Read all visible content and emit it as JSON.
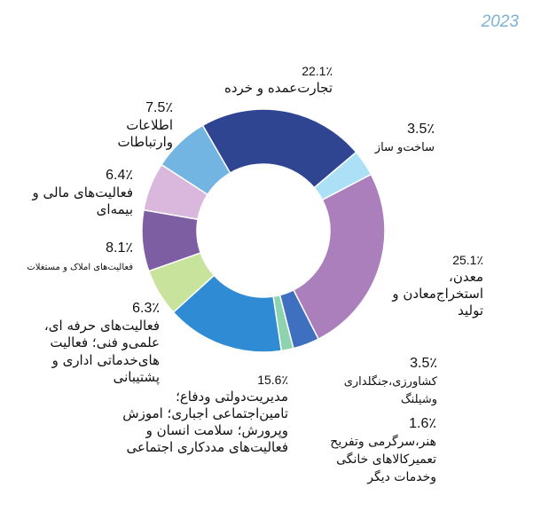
{
  "chart_data": {
    "type": "donut",
    "title": "2023",
    "categories": [
      "تجارت‌عمده و خرده",
      "ساخت‌و ساز",
      "معدن، استخراج‌معادن و تولید",
      "کشاورزی،جنگلداری وشیلنگ",
      "هنر،سرگرمی وتفریح تعمیرکالاهای خانگی وخدمات دیگر",
      "مدیریت‌دولتی ودفاع؛ تامین‌اجتماعی اجباری؛ اموزش وپرورش؛ سلامت انسان و فعالیت‌های مددکاری اجتماعی",
      "فعالیت‌های حرفه ای، علمی‌و فنی؛ فعالیت های‌خدماتی اداری و پشتیبانی",
      "فعالیت‌های املاک و مستغلات",
      "فعالیت‌های مالی و بیمه‌ای",
      "اطلاعات وارتباطات"
    ],
    "values": [
      22.1,
      3.5,
      25.1,
      3.5,
      1.6,
      15.6,
      6.3,
      8.1,
      6.4,
      7.5
    ],
    "value_labels": [
      "22.1٪",
      "3.5٪",
      "25.1٪",
      "3.5٪",
      "1.6٪",
      "15.6٪",
      "6.3٪",
      "8.1٪",
      "6.4٪",
      "7.5٪"
    ],
    "colors": [
      "#2f4592",
      "#ace0f7",
      "#ab7fbb",
      "#3f6fbf",
      "#8ed3b0",
      "#2f8bd3",
      "#c8e39c",
      "#7d5ea2",
      "#dab7dc",
      "#72b4e2"
    ]
  }
}
